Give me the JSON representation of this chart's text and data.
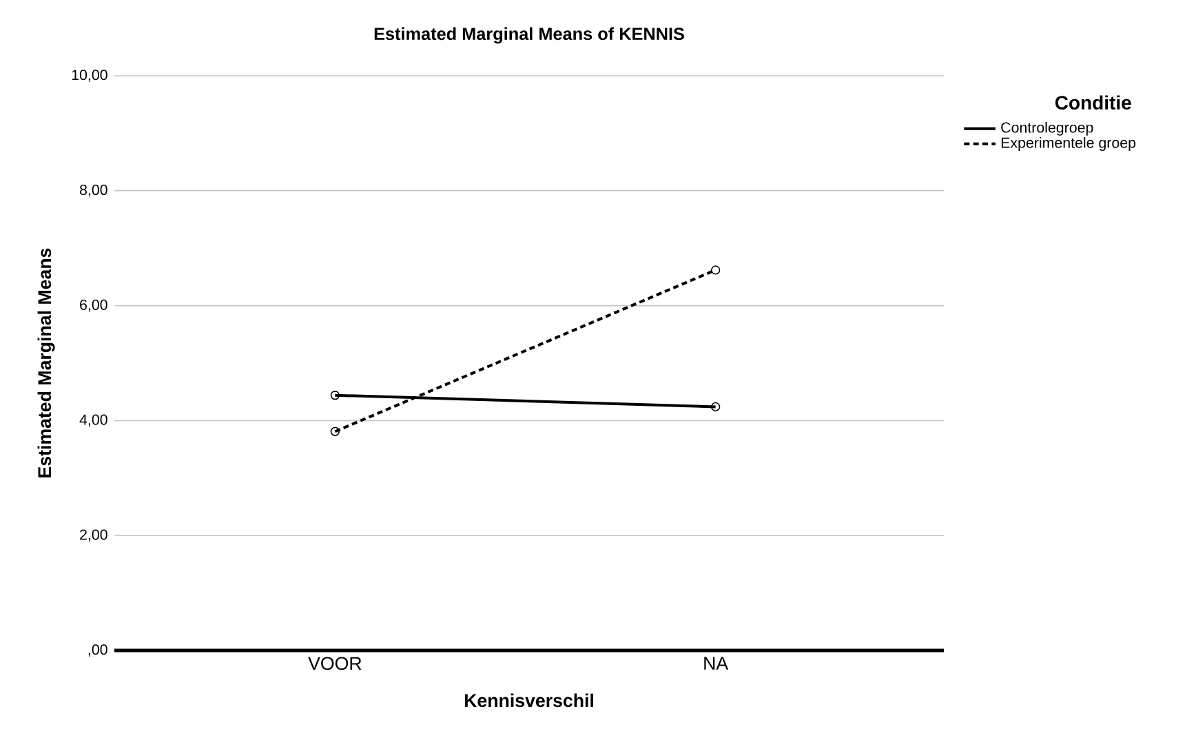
{
  "chart_data": {
    "type": "line",
    "title": "Estimated Marginal Means of KENNIS",
    "xlabel": "Kennisverschil",
    "ylabel": "Estimated Marginal Means",
    "legend_title": "Conditie",
    "categories": [
      "VOOR",
      "NA"
    ],
    "series": [
      {
        "name": "Controlegroep",
        "color": "#000000",
        "line_style": "solid",
        "values": [
          4.44,
          4.24
        ]
      },
      {
        "name": "Experimentele groep",
        "color": "#000000",
        "line_style": "dashed",
        "values": [
          3.81,
          6.62
        ]
      }
    ],
    "ylim": [
      0,
      10
    ],
    "yticks": [
      {
        "value": 0,
        "label": ",00"
      },
      {
        "value": 2,
        "label": "2,00"
      },
      {
        "value": 4,
        "label": "4,00"
      },
      {
        "value": 6,
        "label": "6,00"
      },
      {
        "value": 8,
        "label": "8,00"
      },
      {
        "value": 10,
        "label": "10,00"
      }
    ],
    "grid": "y",
    "legend": "top right",
    "marker": "circle"
  }
}
